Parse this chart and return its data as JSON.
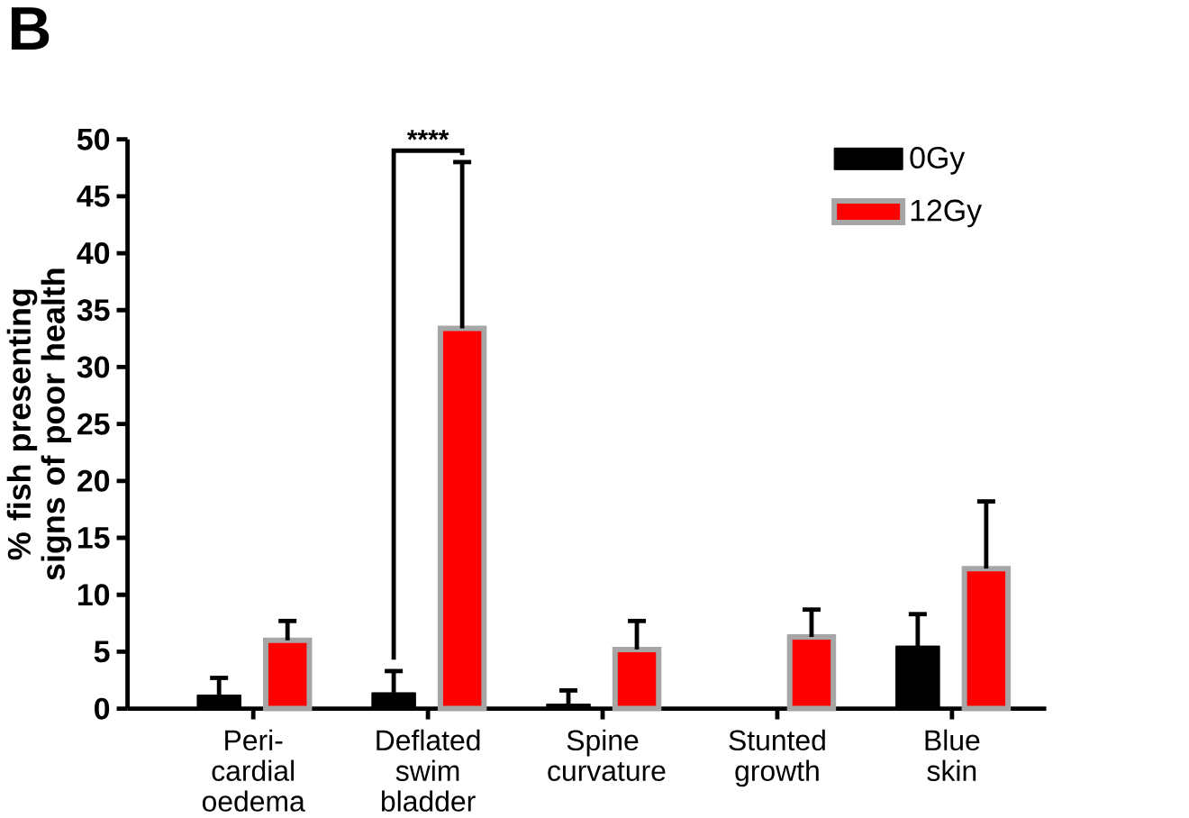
{
  "chart_data": {
    "type": "bar",
    "categories": [
      "Peri-cardial oedema",
      "Deflated swim bladder",
      "Spine curvature",
      "Stunted growth",
      "Blue skin"
    ],
    "ylabel": "% fish presenting signs of poor health",
    "series": [
      {
        "name": "0Gy",
        "color": "#000000",
        "values": [
          1.2,
          1.4,
          0.4,
          0,
          5.5
        ],
        "errors": [
          [
            1.2,
            2.7
          ],
          [
            1.4,
            3.3
          ],
          [
            0.4,
            1.6
          ],
          null,
          [
            5.5,
            8.3
          ]
        ]
      },
      {
        "name": "12Gy",
        "color": "#ff0000",
        "values": [
          6.0,
          33.4,
          5.2,
          6.3,
          12.3
        ],
        "errors": [
          [
            6.0,
            7.7
          ],
          [
            33.4,
            48
          ],
          [
            5.2,
            7.7
          ],
          [
            6.3,
            8.7
          ],
          [
            12.3,
            18.2
          ]
        ]
      }
    ],
    "ylim": [
      0,
      50
    ],
    "yticks": [
      0,
      5,
      10,
      15,
      20,
      25,
      30,
      35,
      40,
      45,
      50
    ],
    "legend": "top right",
    "grid": false,
    "annotations": [
      "B",
      "****"
    ]
  }
}
